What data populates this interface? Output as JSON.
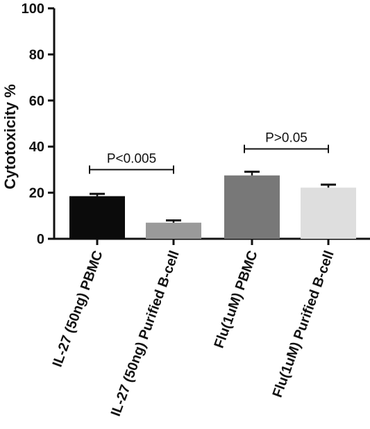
{
  "chart_data": {
    "type": "bar",
    "title": "",
    "xlabel": "",
    "ylabel": "Cytotoxicity %",
    "ylim": [
      0,
      100
    ],
    "yticks": [
      0,
      20,
      40,
      60,
      80,
      100
    ],
    "grid": false,
    "categories": [
      "IL-27 (50ng) PBMC",
      "IL-27 (50ng) Purified B-cell",
      "Flu(1uM) PBMC",
      "Flu(1uM) Purified B-cell"
    ],
    "values": [
      18.5,
      7.0,
      27.5,
      22.2
    ],
    "errors": [
      1.0,
      1.0,
      1.6,
      1.3
    ],
    "bar_colors": [
      "#0b0b0b",
      "#9a9a9a",
      "#787878",
      "#dedede"
    ],
    "annotations": [
      {
        "label": "P<0.005",
        "from": 0,
        "to": 1,
        "y": 30
      },
      {
        "label": "P>0.05",
        "from": 2,
        "to": 3,
        "y": 39
      }
    ]
  }
}
